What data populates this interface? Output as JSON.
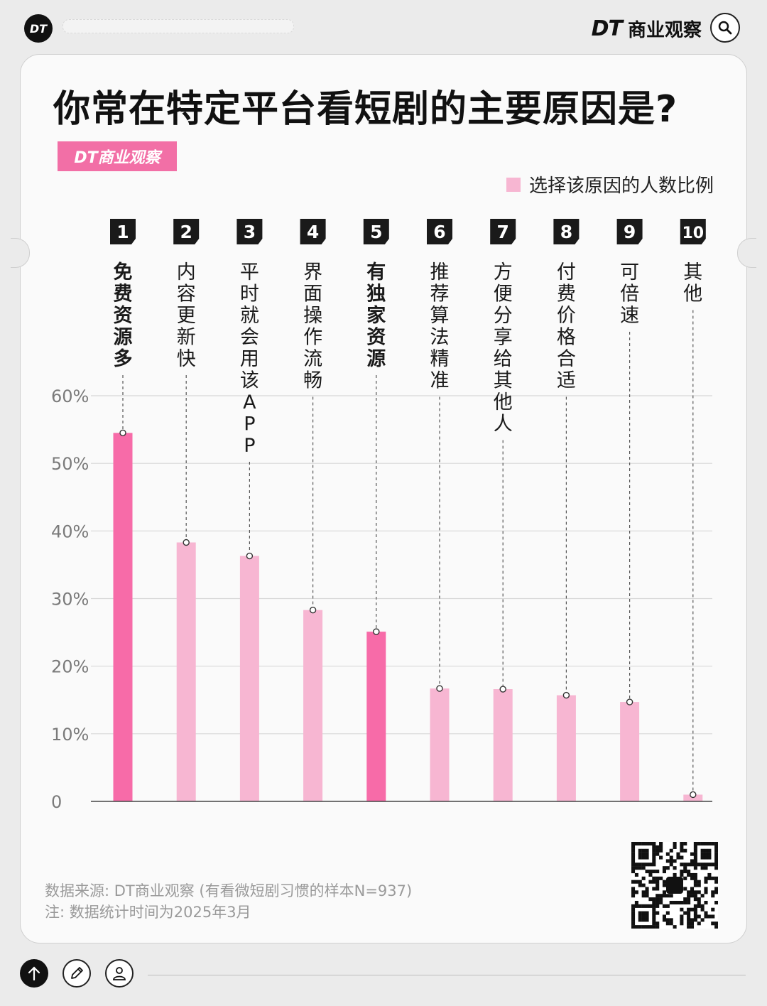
{
  "header": {
    "logo_text": "DT",
    "brand_dt": "DT",
    "brand_text": "商业观察"
  },
  "card": {
    "title": "你常在特定平台看短剧的主要原因是?",
    "brand_tag": "DT商业观察",
    "legend_label": "选择该原因的人数比例"
  },
  "footer": {
    "source": "数据来源: DT商业观察 (有看微短剧习惯的样本N=937)",
    "note": "注: 数据统计时间为2025年3月"
  },
  "icons": {
    "search": "search-icon",
    "up": "arrow-up-icon",
    "edit": "pencil-icon",
    "user": "user-icon",
    "qr": "qr-code-icon"
  },
  "colors": {
    "highlight": "#f76ba8",
    "normal": "#f7b6d2",
    "rank_badge": "#1a1a1a"
  },
  "chart_data": {
    "type": "bar",
    "legend": "选择该原因的人数比例",
    "ranks": [
      "1",
      "2",
      "3",
      "4",
      "5",
      "6",
      "7",
      "8",
      "9",
      "10"
    ],
    "categories": [
      "免费资源多",
      "内容更新快",
      "平时就会用该APP",
      "界面操作流畅",
      "有独家资源",
      "推荐算法精准",
      "方便分享给其他人",
      "付费价格合适",
      "可倍速",
      "其他"
    ],
    "values": [
      54.5,
      38.3,
      36.3,
      28.3,
      25.1,
      16.7,
      16.6,
      15.7,
      14.7,
      1.0
    ],
    "highlighted": [
      true,
      false,
      false,
      false,
      true,
      false,
      false,
      false,
      false,
      false
    ],
    "y_ticks": [
      "0",
      "10%",
      "20%",
      "30%",
      "40%",
      "50%",
      "60%"
    ],
    "y_tick_values": [
      0,
      10,
      20,
      30,
      40,
      50,
      60
    ],
    "ylim": [
      0,
      60
    ],
    "grid": true
  }
}
